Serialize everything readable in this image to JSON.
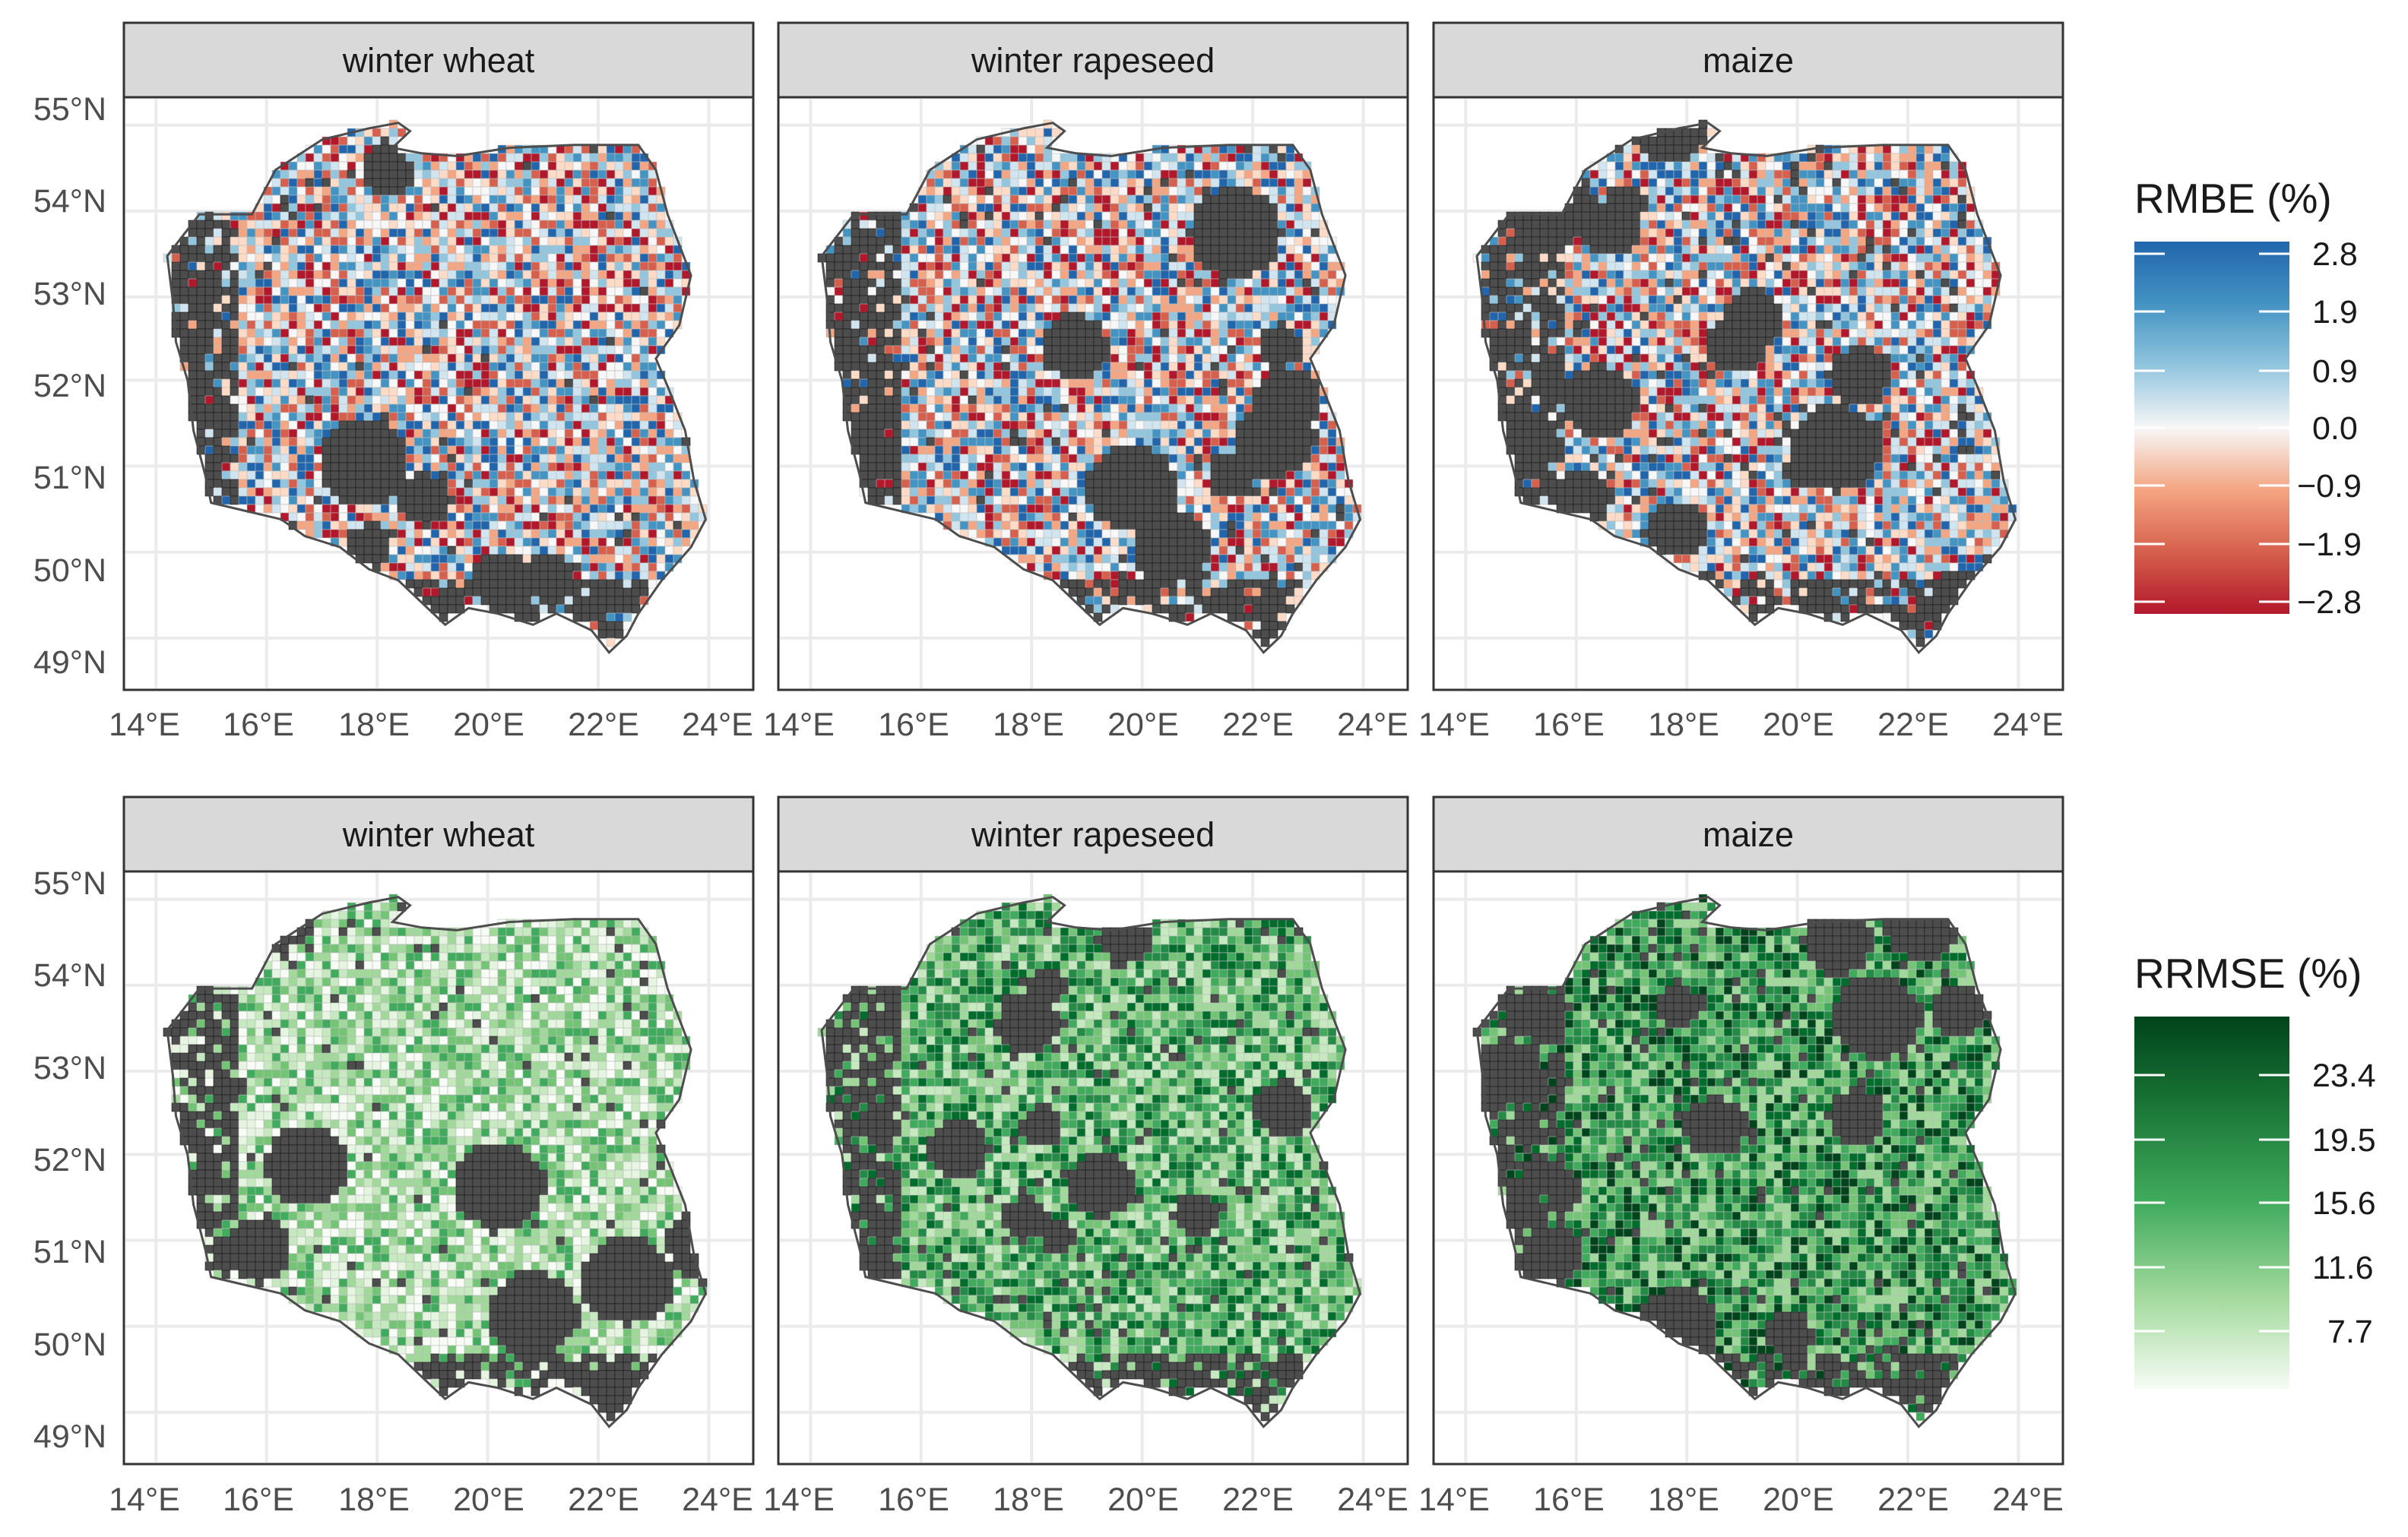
{
  "rows": [
    {
      "measure": "RMBE",
      "panels": [
        {
          "title": "winter wheat",
          "palette_key": "rmbe",
          "coverage": 0.78
        },
        {
          "title": "winter rapeseed",
          "palette_key": "rmbe",
          "coverage": 0.68
        },
        {
          "title": "maize",
          "palette_key": "rmbe",
          "coverage": 0.6
        }
      ],
      "legend": {
        "title": "RMBE (%)",
        "labels": [
          "2.8",
          "1.9",
          "0.9",
          "0.0",
          "−0.9",
          "−1.9",
          "−2.8"
        ],
        "colors_top_to_bottom": [
          "#2166ac",
          "#4393c3",
          "#92c5de",
          "#f7f7f7",
          "#f4a582",
          "#d6604d",
          "#b2182b"
        ]
      }
    },
    {
      "measure": "RRMSE",
      "panels": [
        {
          "title": "winter wheat",
          "palette_key": "rrmse_light",
          "coverage": 0.78
        },
        {
          "title": "winter rapeseed",
          "palette_key": "rrmse_mid",
          "coverage": 0.68
        },
        {
          "title": "maize",
          "palette_key": "rrmse_dark",
          "coverage": 0.6
        }
      ],
      "legend": {
        "title": "RRMSE (%)",
        "labels": [
          "23.4",
          "19.5",
          "15.6",
          "11.6",
          "7.7"
        ],
        "colors_top_to_bottom": [
          "#00441b",
          "#1b7837",
          "#41ab5d",
          "#a1d99b",
          "#f7fcf5"
        ]
      }
    }
  ],
  "axes": {
    "lat_ticks": [
      "55°N",
      "54°N",
      "53°N",
      "52°N",
      "51°N",
      "50°N",
      "49°N"
    ],
    "lon_ticks": [
      "14°E",
      "16°E",
      "18°E",
      "20°E",
      "22°E",
      "24°E"
    ]
  },
  "colors": {
    "no_data": "#4d4d4d",
    "strip_fill": "#d9d9d9",
    "panel_border": "#333333",
    "gridline": "#ebebeb",
    "rmbe": [
      "#b2182b",
      "#d6604d",
      "#f4a582",
      "#fddbc7",
      "#f7f7f7",
      "#d1e5f0",
      "#92c5de",
      "#4393c3",
      "#2166ac"
    ],
    "rrmse_light": [
      "#f7fcf5",
      "#e5f5e0",
      "#c7e9c0",
      "#a1d99b",
      "#74c476",
      "#41ab5d"
    ],
    "rrmse_mid": [
      "#c7e9c0",
      "#a1d99b",
      "#74c476",
      "#41ab5d",
      "#238b45",
      "#006d2c"
    ],
    "rrmse_dark": [
      "#a1d99b",
      "#74c476",
      "#41ab5d",
      "#238b45",
      "#006d2c",
      "#00441b"
    ]
  }
}
